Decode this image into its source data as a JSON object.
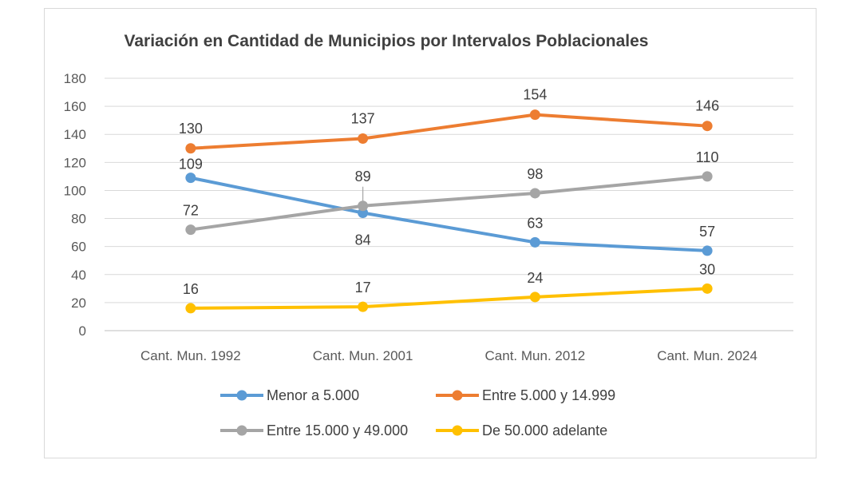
{
  "chart_data": {
    "type": "line",
    "title": "Variación en Cantidad de Municipios por Intervalos Poblacionales",
    "categories": [
      "Cant. Mun. 1992",
      "Cant. Mun. 2001",
      "Cant. Mun. 2012",
      "Cant. Mun. 2024"
    ],
    "ylim": [
      0,
      180
    ],
    "yticks": [
      0,
      20,
      40,
      60,
      80,
      100,
      120,
      140,
      160,
      180
    ],
    "grid": true,
    "legend_position": "bottom",
    "data_labels": true,
    "series": [
      {
        "name": "Menor a 5.000",
        "color": "#5B9BD5",
        "values": [
          109,
          84,
          63,
          57
        ]
      },
      {
        "name": "Entre 5.000 y 14.999",
        "color": "#ED7D31",
        "values": [
          130,
          137,
          154,
          146
        ]
      },
      {
        "name": "Entre 15.000 y 49.000",
        "color": "#A5A5A5",
        "values": [
          72,
          89,
          98,
          110
        ]
      },
      {
        "name": "De 50.000 adelante",
        "color": "#FFC000",
        "values": [
          16,
          17,
          24,
          30
        ]
      }
    ]
  }
}
